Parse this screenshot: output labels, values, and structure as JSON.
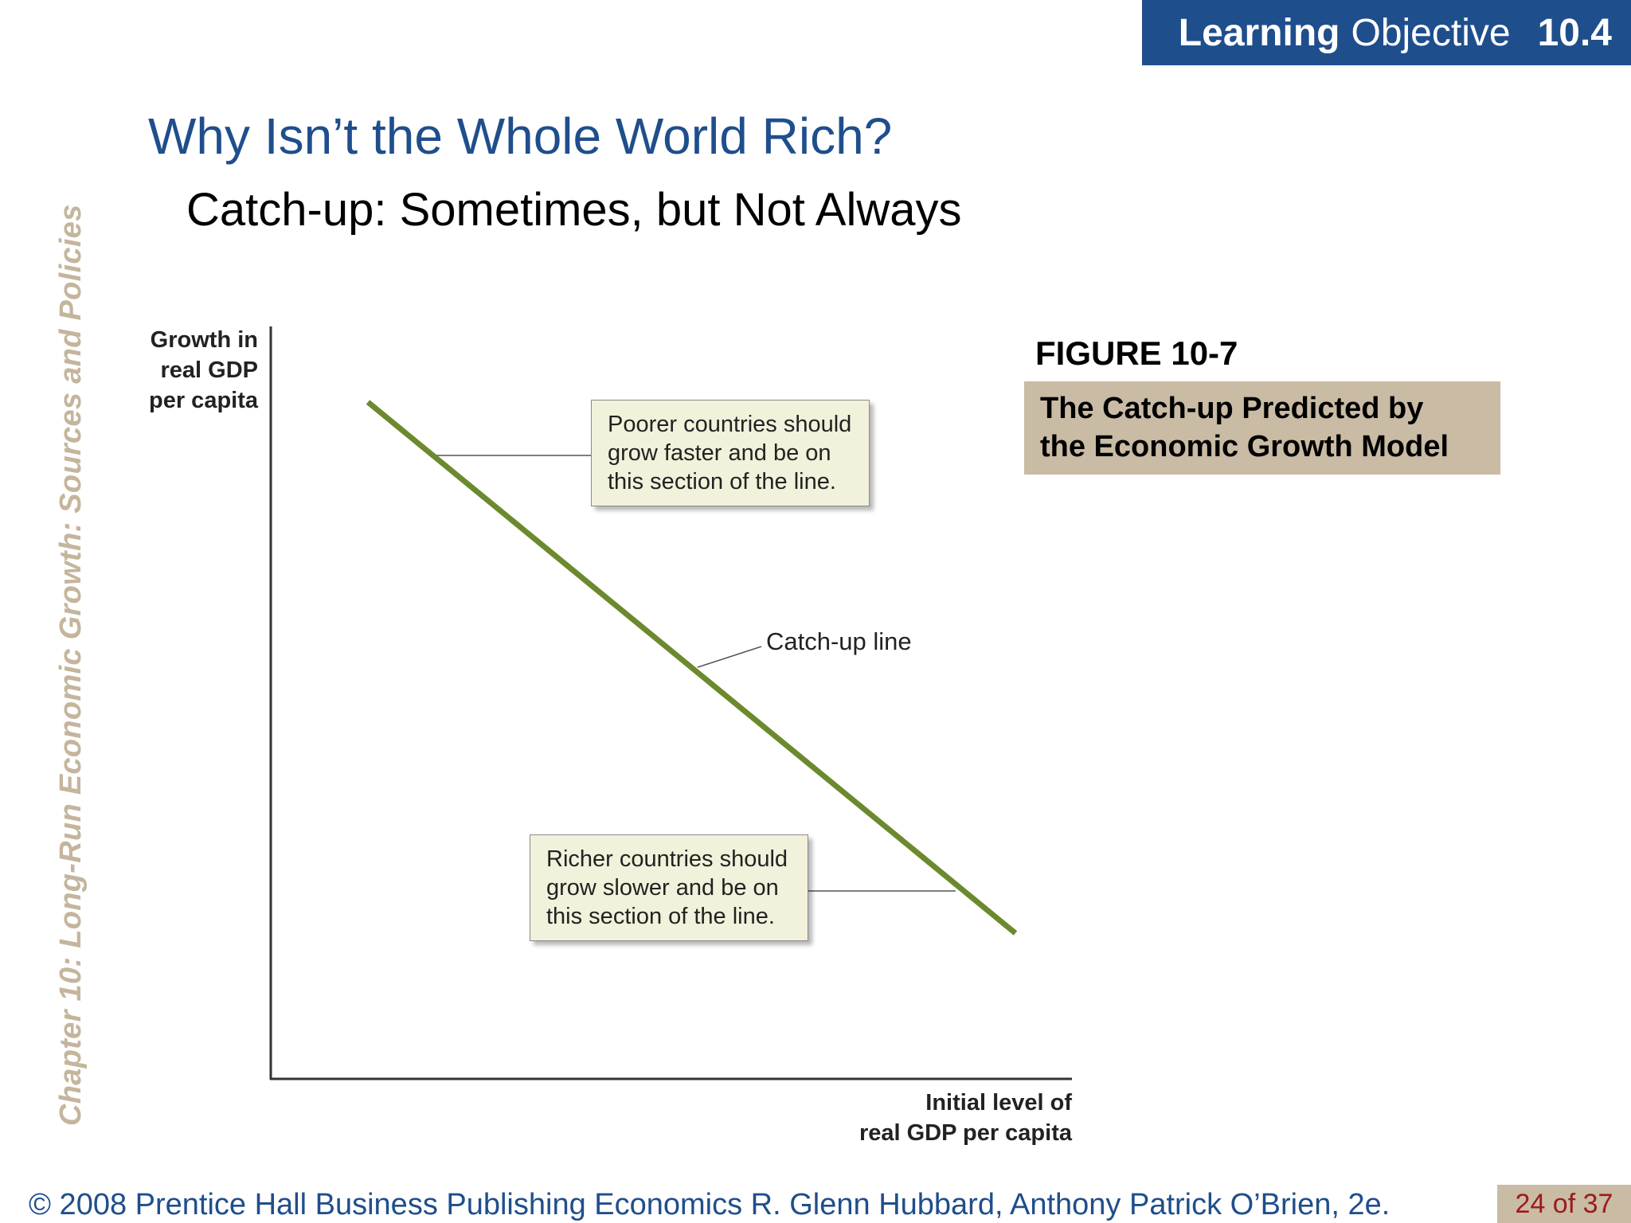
{
  "learning_objective": {
    "word1": "Learning",
    "word2": "Objective",
    "number": "10.4"
  },
  "sidebar": {
    "chapter_title": "Chapter 10:  Long-Run Economic Growth:  Sources and Policies"
  },
  "slide": {
    "title": "Why Isn’t the Whole World Rich?",
    "subtitle": "Catch-up:  Sometimes, but Not Always"
  },
  "figure": {
    "number": "FIGURE 10-7",
    "caption_line1": "The Catch-up Predicted by",
    "caption_line2": "the Economic Growth Model"
  },
  "diagram": {
    "y_axis_label": [
      "Growth in",
      "real GDP",
      "per capita"
    ],
    "x_axis_label": [
      "Initial level of",
      "real GDP per capita"
    ],
    "line_label": "Catch-up line",
    "line_color": "#6b8a2e",
    "callout_top": [
      "Poorer countries should",
      "grow faster and be on",
      "this section of the line."
    ],
    "callout_bottom": [
      "Richer countries should",
      "grow slower and be on",
      "this section of the line."
    ]
  },
  "footer": {
    "credit": "© 2008 Prentice Hall Business Publishing   Economics  R. Glenn Hubbard, Anthony Patrick O’Brien, 2e.",
    "page": "24 of 37"
  },
  "colors": {
    "title_blue": "#1f4e8c",
    "tan": "#c9bba4",
    "side_text": "#c4b59c",
    "page_red": "#9b1b1b"
  }
}
